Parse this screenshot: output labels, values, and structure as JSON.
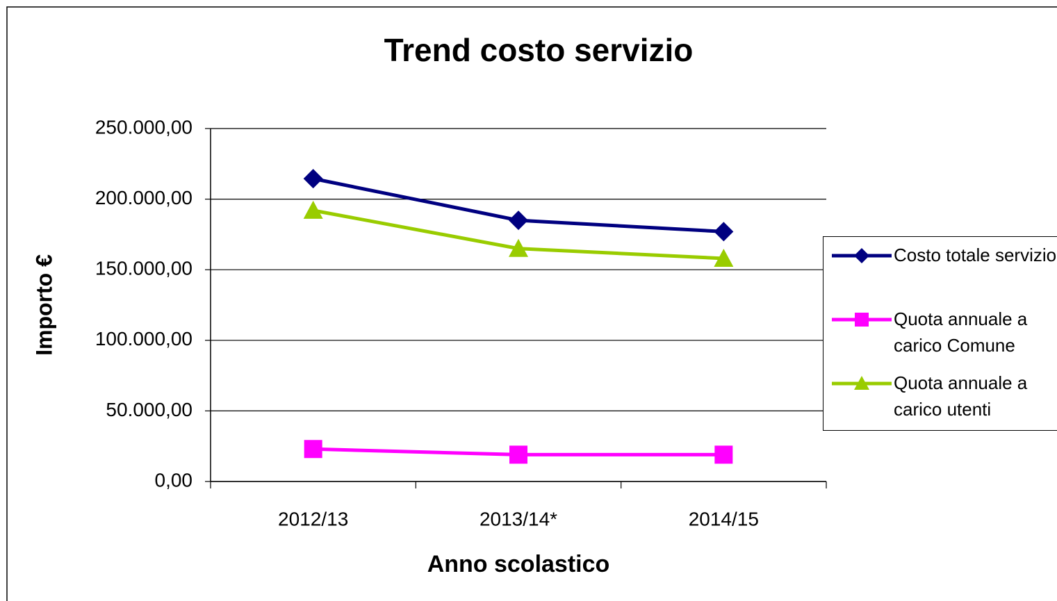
{
  "chart_data": {
    "type": "line",
    "title": "Trend costo servizio",
    "x_label": "Anno scolastico",
    "y_label": "Importo €",
    "categories": [
      "2012/13",
      "2013/14*",
      "2014/15"
    ],
    "series": [
      {
        "name": "Costo totale servizio",
        "color": "#000080",
        "marker": "diamond",
        "values": [
          214500,
          185000,
          177000
        ]
      },
      {
        "name": "Quota annuale a carico Comune",
        "color": "#ff00ff",
        "marker": "square",
        "values": [
          23000,
          19000,
          19000
        ]
      },
      {
        "name": "Quota annuale a carico utenti",
        "color": "#99cc00",
        "marker": "triangle",
        "values": [
          192000,
          165000,
          158000
        ]
      }
    ],
    "ylim": [
      0,
      250000
    ],
    "yticks": [
      {
        "value": 0,
        "label": "0,00"
      },
      {
        "value": 50000,
        "label": "50.000,00"
      },
      {
        "value": 100000,
        "label": "100.000,00"
      },
      {
        "value": 150000,
        "label": "150.000,00"
      },
      {
        "value": 200000,
        "label": "200.000,00"
      },
      {
        "value": 250000,
        "label": "250.000,00"
      }
    ],
    "grid": true,
    "legend": "right"
  }
}
